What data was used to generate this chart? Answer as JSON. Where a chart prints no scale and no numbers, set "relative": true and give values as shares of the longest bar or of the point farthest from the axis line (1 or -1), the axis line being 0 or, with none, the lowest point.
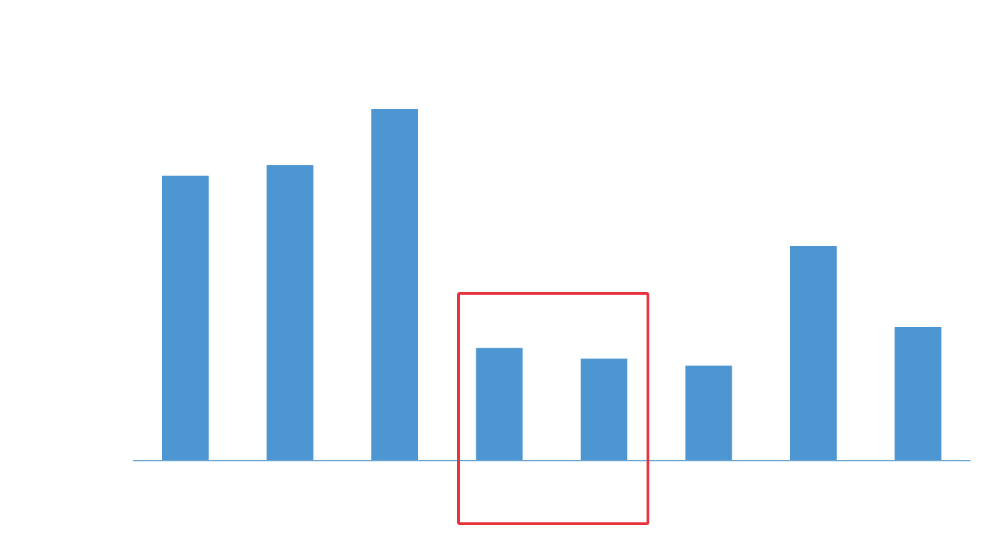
{
  "chart_data": {
    "type": "bar",
    "relative": true,
    "categories": [
      null,
      null,
      null,
      null,
      null,
      null,
      null,
      null
    ],
    "values": [
      0.81,
      0.84,
      1,
      0.32,
      0.29,
      0.27,
      0.61,
      0.38
    ],
    "color": "#4d96d1"
  }
}
